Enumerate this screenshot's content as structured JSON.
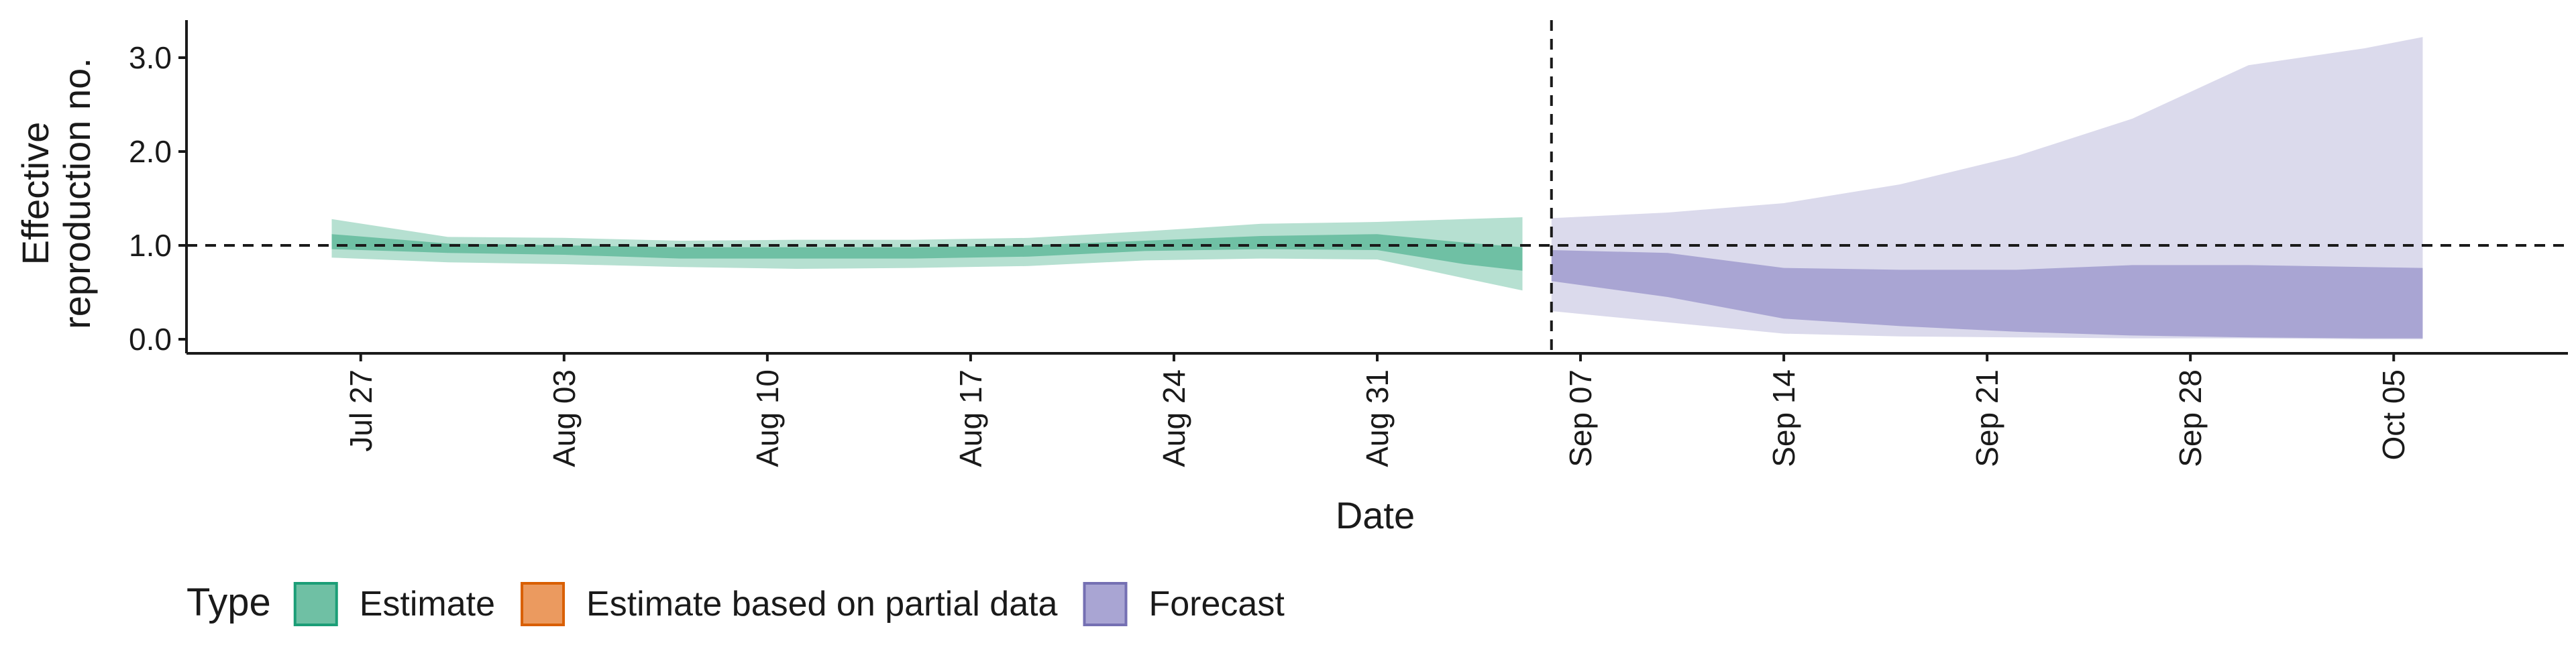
{
  "chart_data": {
    "type": "area",
    "ylabel_lines": [
      "Effective",
      "reproduction no."
    ],
    "xlabel": "Date",
    "ylim": [
      -0.15,
      3.4
    ],
    "yticks": [
      0.0,
      1.0,
      2.0,
      3.0
    ],
    "ytick_labels": [
      "0.0",
      "1.0",
      "2.0",
      "3.0"
    ],
    "xlim": [
      "2020-07-21",
      "2020-10-11"
    ],
    "xticks": [
      "2020-07-27",
      "2020-08-03",
      "2020-08-10",
      "2020-08-17",
      "2020-08-24",
      "2020-08-31",
      "2020-09-07",
      "2020-09-14",
      "2020-09-21",
      "2020-09-28",
      "2020-10-05"
    ],
    "xtick_labels": [
      "Jul 27",
      "Aug 03",
      "Aug 10",
      "Aug 17",
      "Aug 24",
      "Aug 31",
      "Sep 07",
      "Sep 14",
      "Sep 21",
      "Sep 28",
      "Oct 05"
    ],
    "reference_hline": 1.0,
    "reference_vline": "2020-09-06",
    "grid": false,
    "legend": {
      "title": "Type",
      "position": "bottom",
      "entries": [
        {
          "label": "Estimate",
          "fill": "#6fc0a4",
          "stroke": "#1b9e77"
        },
        {
          "label": "Estimate based on partial data",
          "fill": "#eb9a5f",
          "stroke": "#d95f02"
        },
        {
          "label": "Forecast",
          "fill": "#a9a5d3",
          "stroke": "#7570b3"
        }
      ]
    },
    "series": [
      {
        "type": "Estimate",
        "color_outer": "#b6e0d1",
        "color_inner": "#6fc0a4",
        "x": [
          "2020-07-26",
          "2020-07-30",
          "2020-08-03",
          "2020-08-07",
          "2020-08-11",
          "2020-08-15",
          "2020-08-19",
          "2020-08-23",
          "2020-08-27",
          "2020-08-31",
          "2020-09-03",
          "2020-09-05"
        ],
        "outer_lower": [
          0.87,
          0.82,
          0.8,
          0.77,
          0.75,
          0.76,
          0.78,
          0.84,
          0.86,
          0.85,
          0.65,
          0.52
        ],
        "outer_upper": [
          1.28,
          1.09,
          1.08,
          1.05,
          1.06,
          1.06,
          1.08,
          1.15,
          1.23,
          1.25,
          1.28,
          1.3
        ],
        "inner_lower": [
          0.96,
          0.92,
          0.9,
          0.86,
          0.86,
          0.86,
          0.88,
          0.94,
          0.96,
          0.95,
          0.8,
          0.73
        ],
        "inner_upper": [
          1.12,
          1.02,
          1.0,
          0.98,
          0.98,
          0.98,
          1.0,
          1.05,
          1.1,
          1.12,
          1.03,
          0.98
        ]
      },
      {
        "type": "Forecast",
        "color_outer": "#dbdaec",
        "color_inner": "#a9a5d3",
        "x": [
          "2020-09-06",
          "2020-09-10",
          "2020-09-14",
          "2020-09-18",
          "2020-09-22",
          "2020-09-26",
          "2020-09-30",
          "2020-10-04",
          "2020-10-06"
        ],
        "outer_lower": [
          0.3,
          0.18,
          0.06,
          0.03,
          0.02,
          0.01,
          0.01,
          0.0,
          0.0
        ],
        "outer_upper": [
          1.29,
          1.35,
          1.45,
          1.65,
          1.95,
          2.35,
          2.92,
          3.1,
          3.22
        ],
        "inner_lower": [
          0.62,
          0.45,
          0.22,
          0.14,
          0.08,
          0.04,
          0.02,
          0.01,
          0.01
        ],
        "inner_upper": [
          0.95,
          0.92,
          0.76,
          0.74,
          0.74,
          0.79,
          0.79,
          0.77,
          0.76
        ]
      }
    ]
  }
}
